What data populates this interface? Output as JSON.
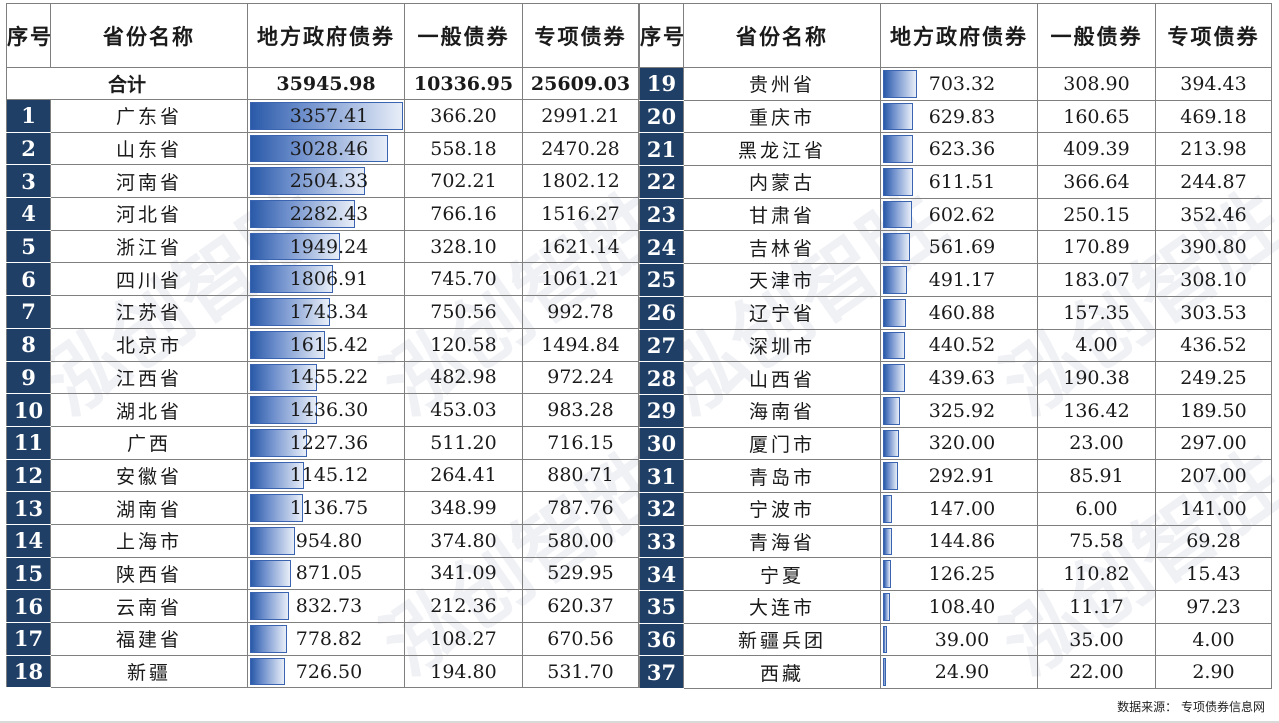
{
  "headers": {
    "index": "序号",
    "province": "省份名称",
    "local_gov_bonds": "地方政府债券",
    "general_bonds": "一般债券",
    "special_bonds": "专项债券"
  },
  "total": {
    "label": "合计",
    "local_gov_bonds": "35945.98",
    "general_bonds": "10336.95",
    "special_bonds": "25609.03"
  },
  "bar_max": 3357.41,
  "bar_color": "#2a5aa8",
  "index_bg_color": "#1f3f66",
  "watermark": "泓创智胜",
  "left_rows": [
    {
      "index": "1",
      "province": "广东省",
      "local_gov_bonds": "3357.41",
      "general_bonds": "366.20",
      "special_bonds": "2991.21"
    },
    {
      "index": "2",
      "province": "山东省",
      "local_gov_bonds": "3028.46",
      "general_bonds": "558.18",
      "special_bonds": "2470.28"
    },
    {
      "index": "3",
      "province": "河南省",
      "local_gov_bonds": "2504.33",
      "general_bonds": "702.21",
      "special_bonds": "1802.12"
    },
    {
      "index": "4",
      "province": "河北省",
      "local_gov_bonds": "2282.43",
      "general_bonds": "766.16",
      "special_bonds": "1516.27"
    },
    {
      "index": "5",
      "province": "浙江省",
      "local_gov_bonds": "1949.24",
      "general_bonds": "328.10",
      "special_bonds": "1621.14"
    },
    {
      "index": "6",
      "province": "四川省",
      "local_gov_bonds": "1806.91",
      "general_bonds": "745.70",
      "special_bonds": "1061.21"
    },
    {
      "index": "7",
      "province": "江苏省",
      "local_gov_bonds": "1743.34",
      "general_bonds": "750.56",
      "special_bonds": "992.78"
    },
    {
      "index": "8",
      "province": "北京市",
      "local_gov_bonds": "1615.42",
      "general_bonds": "120.58",
      "special_bonds": "1494.84"
    },
    {
      "index": "9",
      "province": "江西省",
      "local_gov_bonds": "1455.22",
      "general_bonds": "482.98",
      "special_bonds": "972.24"
    },
    {
      "index": "10",
      "province": "湖北省",
      "local_gov_bonds": "1436.30",
      "general_bonds": "453.03",
      "special_bonds": "983.28"
    },
    {
      "index": "11",
      "province": "广西",
      "local_gov_bonds": "1227.36",
      "general_bonds": "511.20",
      "special_bonds": "716.15"
    },
    {
      "index": "12",
      "province": "安徽省",
      "local_gov_bonds": "1145.12",
      "general_bonds": "264.41",
      "special_bonds": "880.71"
    },
    {
      "index": "13",
      "province": "湖南省",
      "local_gov_bonds": "1136.75",
      "general_bonds": "348.99",
      "special_bonds": "787.76"
    },
    {
      "index": "14",
      "province": "上海市",
      "local_gov_bonds": "954.80",
      "general_bonds": "374.80",
      "special_bonds": "580.00"
    },
    {
      "index": "15",
      "province": "陕西省",
      "local_gov_bonds": "871.05",
      "general_bonds": "341.09",
      "special_bonds": "529.95"
    },
    {
      "index": "16",
      "province": "云南省",
      "local_gov_bonds": "832.73",
      "general_bonds": "212.36",
      "special_bonds": "620.37"
    },
    {
      "index": "17",
      "province": "福建省",
      "local_gov_bonds": "778.82",
      "general_bonds": "108.27",
      "special_bonds": "670.56"
    },
    {
      "index": "18",
      "province": "新疆",
      "local_gov_bonds": "726.50",
      "general_bonds": "194.80",
      "special_bonds": "531.70"
    }
  ],
  "right_rows": [
    {
      "index": "19",
      "province": "贵州省",
      "local_gov_bonds": "703.32",
      "general_bonds": "308.90",
      "special_bonds": "394.43"
    },
    {
      "index": "20",
      "province": "重庆市",
      "local_gov_bonds": "629.83",
      "general_bonds": "160.65",
      "special_bonds": "469.18"
    },
    {
      "index": "21",
      "province": "黑龙江省",
      "local_gov_bonds": "623.36",
      "general_bonds": "409.39",
      "special_bonds": "213.98"
    },
    {
      "index": "22",
      "province": "内蒙古",
      "local_gov_bonds": "611.51",
      "general_bonds": "366.64",
      "special_bonds": "244.87"
    },
    {
      "index": "23",
      "province": "甘肃省",
      "local_gov_bonds": "602.62",
      "general_bonds": "250.15",
      "special_bonds": "352.46"
    },
    {
      "index": "24",
      "province": "吉林省",
      "local_gov_bonds": "561.69",
      "general_bonds": "170.89",
      "special_bonds": "390.80"
    },
    {
      "index": "25",
      "province": "天津市",
      "local_gov_bonds": "491.17",
      "general_bonds": "183.07",
      "special_bonds": "308.10"
    },
    {
      "index": "26",
      "province": "辽宁省",
      "local_gov_bonds": "460.88",
      "general_bonds": "157.35",
      "special_bonds": "303.53"
    },
    {
      "index": "27",
      "province": "深圳市",
      "local_gov_bonds": "440.52",
      "general_bonds": "4.00",
      "special_bonds": "436.52"
    },
    {
      "index": "28",
      "province": "山西省",
      "local_gov_bonds": "439.63",
      "general_bonds": "190.38",
      "special_bonds": "249.25"
    },
    {
      "index": "29",
      "province": "海南省",
      "local_gov_bonds": "325.92",
      "general_bonds": "136.42",
      "special_bonds": "189.50"
    },
    {
      "index": "30",
      "province": "厦门市",
      "local_gov_bonds": "320.00",
      "general_bonds": "23.00",
      "special_bonds": "297.00"
    },
    {
      "index": "31",
      "province": "青岛市",
      "local_gov_bonds": "292.91",
      "general_bonds": "85.91",
      "special_bonds": "207.00"
    },
    {
      "index": "32",
      "province": "宁波市",
      "local_gov_bonds": "147.00",
      "general_bonds": "6.00",
      "special_bonds": "141.00"
    },
    {
      "index": "33",
      "province": "青海省",
      "local_gov_bonds": "144.86",
      "general_bonds": "75.58",
      "special_bonds": "69.28"
    },
    {
      "index": "34",
      "province": "宁夏",
      "local_gov_bonds": "126.25",
      "general_bonds": "110.82",
      "special_bonds": "15.43"
    },
    {
      "index": "35",
      "province": "大连市",
      "local_gov_bonds": "108.40",
      "general_bonds": "11.17",
      "special_bonds": "97.23"
    },
    {
      "index": "36",
      "province": "新疆兵团",
      "local_gov_bonds": "39.00",
      "general_bonds": "35.00",
      "special_bonds": "4.00"
    },
    {
      "index": "37",
      "province": "西藏",
      "local_gov_bonds": "24.90",
      "general_bonds": "22.00",
      "special_bonds": "2.90"
    }
  ],
  "source": "数据来源： 专项债券信息网"
}
